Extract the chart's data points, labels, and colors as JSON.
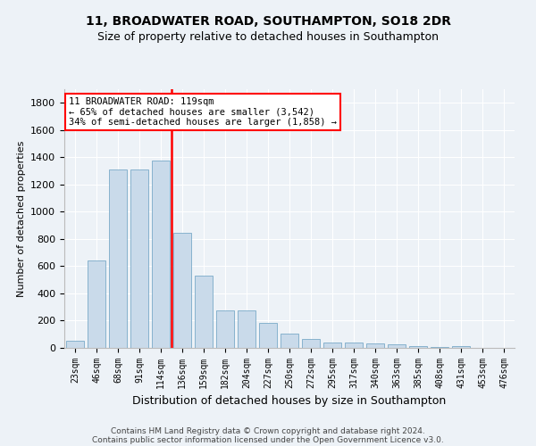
{
  "title1": "11, BROADWATER ROAD, SOUTHAMPTON, SO18 2DR",
  "title2": "Size of property relative to detached houses in Southampton",
  "xlabel": "Distribution of detached houses by size in Southampton",
  "ylabel": "Number of detached properties",
  "categories": [
    "23sqm",
    "46sqm",
    "68sqm",
    "91sqm",
    "114sqm",
    "136sqm",
    "159sqm",
    "182sqm",
    "204sqm",
    "227sqm",
    "250sqm",
    "272sqm",
    "295sqm",
    "317sqm",
    "340sqm",
    "363sqm",
    "385sqm",
    "408sqm",
    "431sqm",
    "453sqm",
    "476sqm"
  ],
  "values": [
    50,
    640,
    1310,
    1310,
    1375,
    848,
    528,
    275,
    275,
    185,
    105,
    65,
    40,
    38,
    35,
    28,
    15,
    5,
    12,
    0,
    0
  ],
  "bar_color": "#c9daea",
  "bar_edge_color": "#7aaac8",
  "vline_color": "red",
  "vline_x_index": 4,
  "annotation_text": "11 BROADWATER ROAD: 119sqm\n← 65% of detached houses are smaller (3,542)\n34% of semi-detached houses are larger (1,858) →",
  "annotation_box_color": "white",
  "annotation_box_edge": "red",
  "ylim": [
    0,
    1900
  ],
  "yticks": [
    0,
    200,
    400,
    600,
    800,
    1000,
    1200,
    1400,
    1600,
    1800
  ],
  "footer1": "Contains HM Land Registry data © Crown copyright and database right 2024.",
  "footer2": "Contains public sector information licensed under the Open Government Licence v3.0.",
  "bg_color": "#edf2f7",
  "plot_bg_color": "#edf2f7",
  "grid_color": "#ffffff",
  "title1_fontsize": 10,
  "title2_fontsize": 9,
  "xlabel_fontsize": 9,
  "ylabel_fontsize": 8,
  "tick_fontsize": 8,
  "footer_fontsize": 6.5
}
